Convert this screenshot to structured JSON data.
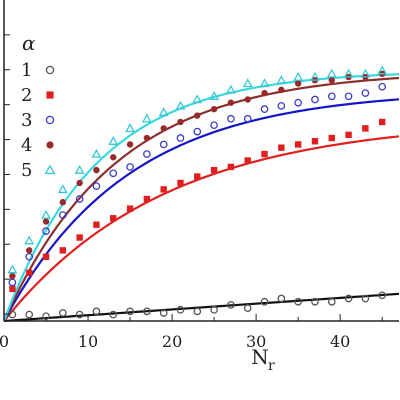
{
  "chart_data": {
    "type": "scatter",
    "xlabel": "N",
    "xlabel_sub": "r",
    "ylabel": "",
    "xlim": [
      0,
      47
    ],
    "ylim": [
      0,
      1
    ],
    "x_ticks": [
      0,
      10,
      20,
      30,
      40
    ],
    "x_tick_labels": [
      "0",
      "10",
      "20",
      "30",
      "40"
    ],
    "grid": false,
    "legend_title": "α",
    "legend_position": "top-left",
    "series": [
      {
        "name": "1",
        "marker": "open-circle",
        "color": "#555555",
        "fit_color": "#111111",
        "points": [
          [
            1,
            0.02
          ],
          [
            3,
            0.02
          ],
          [
            5,
            0.015
          ],
          [
            7,
            0.025
          ],
          [
            9,
            0.02
          ],
          [
            11,
            0.03
          ],
          [
            13,
            0.02
          ],
          [
            15,
            0.03
          ],
          [
            17,
            0.03
          ],
          [
            19,
            0.025
          ],
          [
            21,
            0.035
          ],
          [
            23,
            0.03
          ],
          [
            25,
            0.035
          ],
          [
            27,
            0.05
          ],
          [
            29,
            0.04
          ],
          [
            31,
            0.06
          ],
          [
            33,
            0.07
          ],
          [
            35,
            0.06
          ],
          [
            37,
            0.06
          ],
          [
            39,
            0.06
          ],
          [
            41,
            0.07
          ],
          [
            43,
            0.07
          ],
          [
            45,
            0.08
          ]
        ],
        "fit": {
          "model": "linear",
          "slope": 0.0018,
          "intercept": 0.0
        }
      },
      {
        "name": "2",
        "marker": "filled-square",
        "color": "#e02020",
        "fit_color": "#e02020",
        "points": [
          [
            1,
            0.1
          ],
          [
            3,
            0.15
          ],
          [
            5,
            0.2
          ],
          [
            7,
            0.22
          ],
          [
            9,
            0.26
          ],
          [
            11,
            0.3
          ],
          [
            13,
            0.32
          ],
          [
            15,
            0.35
          ],
          [
            17,
            0.38
          ],
          [
            19,
            0.41
          ],
          [
            21,
            0.43
          ],
          [
            23,
            0.45
          ],
          [
            25,
            0.47
          ],
          [
            27,
            0.48
          ],
          [
            29,
            0.5
          ],
          [
            31,
            0.52
          ],
          [
            33,
            0.54
          ],
          [
            35,
            0.55
          ],
          [
            37,
            0.56
          ],
          [
            39,
            0.57
          ],
          [
            41,
            0.58
          ],
          [
            43,
            0.6
          ],
          [
            45,
            0.62
          ]
        ],
        "fit": {
          "model": "saturating",
          "a": 0.63,
          "k": 0.052
        }
      },
      {
        "name": "3",
        "marker": "open-circle",
        "color": "#3c3cc8",
        "fit_color": "#1515c8",
        "points": [
          [
            1,
            0.12
          ],
          [
            3,
            0.2
          ],
          [
            5,
            0.28
          ],
          [
            7,
            0.33
          ],
          [
            9,
            0.38
          ],
          [
            11,
            0.42
          ],
          [
            13,
            0.46
          ],
          [
            15,
            0.48
          ],
          [
            17,
            0.52
          ],
          [
            19,
            0.55
          ],
          [
            21,
            0.57
          ],
          [
            23,
            0.59
          ],
          [
            25,
            0.61
          ],
          [
            27,
            0.63
          ],
          [
            29,
            0.63
          ],
          [
            31,
            0.66
          ],
          [
            33,
            0.67
          ],
          [
            35,
            0.68
          ],
          [
            37,
            0.69
          ],
          [
            39,
            0.7
          ],
          [
            41,
            0.7
          ],
          [
            43,
            0.71
          ],
          [
            45,
            0.73
          ]
        ],
        "fit": {
          "model": "saturating",
          "a": 0.72,
          "k": 0.068
        }
      },
      {
        "name": "4",
        "marker": "filled-circle",
        "color": "#9a2a2a",
        "fit_color": "#8b2e2e",
        "points": [
          [
            1,
            0.14
          ],
          [
            3,
            0.22
          ],
          [
            5,
            0.31
          ],
          [
            7,
            0.37
          ],
          [
            9,
            0.43
          ],
          [
            11,
            0.47
          ],
          [
            13,
            0.51
          ],
          [
            15,
            0.55
          ],
          [
            17,
            0.57
          ],
          [
            19,
            0.6
          ],
          [
            21,
            0.62
          ],
          [
            23,
            0.64
          ],
          [
            25,
            0.66
          ],
          [
            27,
            0.68
          ],
          [
            29,
            0.69
          ],
          [
            31,
            0.71
          ],
          [
            33,
            0.72
          ],
          [
            35,
            0.74
          ],
          [
            37,
            0.75
          ],
          [
            39,
            0.75
          ],
          [
            41,
            0.76
          ],
          [
            43,
            0.76
          ],
          [
            45,
            0.77
          ]
        ],
        "fit": {
          "model": "saturating",
          "a": 0.78,
          "k": 0.075
        }
      },
      {
        "name": "5",
        "marker": "open-triangle",
        "color": "#38c8d8",
        "fit_color": "#38d8e0",
        "points": [
          [
            1,
            0.16
          ],
          [
            3,
            0.25
          ],
          [
            5,
            0.33
          ],
          [
            7,
            0.41
          ],
          [
            9,
            0.47
          ],
          [
            11,
            0.52
          ],
          [
            13,
            0.56
          ],
          [
            15,
            0.6
          ],
          [
            17,
            0.63
          ],
          [
            19,
            0.65
          ],
          [
            21,
            0.67
          ],
          [
            23,
            0.69
          ],
          [
            25,
            0.7
          ],
          [
            27,
            0.72
          ],
          [
            29,
            0.74
          ],
          [
            31,
            0.74
          ],
          [
            33,
            0.75
          ],
          [
            35,
            0.76
          ],
          [
            37,
            0.76
          ],
          [
            39,
            0.77
          ],
          [
            41,
            0.77
          ],
          [
            43,
            0.77
          ],
          [
            45,
            0.78
          ]
        ],
        "fit": {
          "model": "saturating",
          "a": 0.78,
          "k": 0.09
        }
      }
    ]
  }
}
